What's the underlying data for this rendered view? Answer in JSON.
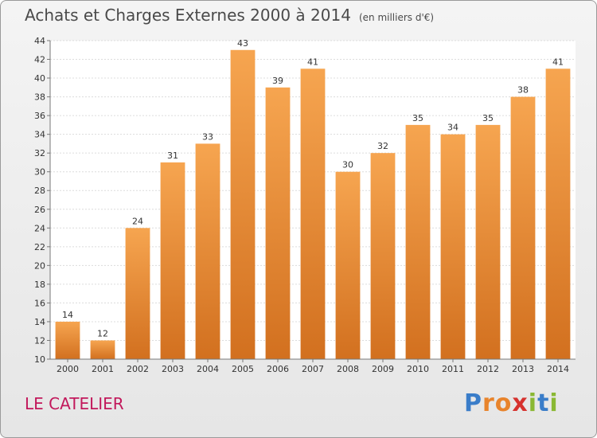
{
  "chart_data": {
    "type": "bar",
    "title": "Achats et Charges Externes 2000 à 2014",
    "subtitle": "(en milliers d'€)",
    "categories": [
      "2000",
      "2001",
      "2002",
      "2003",
      "2004",
      "2005",
      "2006",
      "2007",
      "2008",
      "2009",
      "2010",
      "2011",
      "2012",
      "2013",
      "2014"
    ],
    "values": [
      14,
      12,
      24,
      31,
      33,
      43,
      39,
      41,
      30,
      32,
      35,
      34,
      35,
      38,
      41
    ],
    "ylim": [
      10,
      44
    ],
    "yticks": [
      10,
      12,
      14,
      16,
      18,
      20,
      22,
      24,
      26,
      28,
      30,
      32,
      34,
      36,
      38,
      40,
      42,
      44
    ],
    "xlabel": "",
    "ylabel": "",
    "grid": true,
    "bar_color": "#e8842c"
  },
  "place": "LE CATELIER",
  "logo": {
    "text": "Proxiti",
    "letter_colors": [
      "#3a7dc9",
      "#e8842c",
      "#e8842c",
      "#d6322e",
      "#8ab833",
      "#3a7dc9",
      "#8ab833"
    ]
  }
}
